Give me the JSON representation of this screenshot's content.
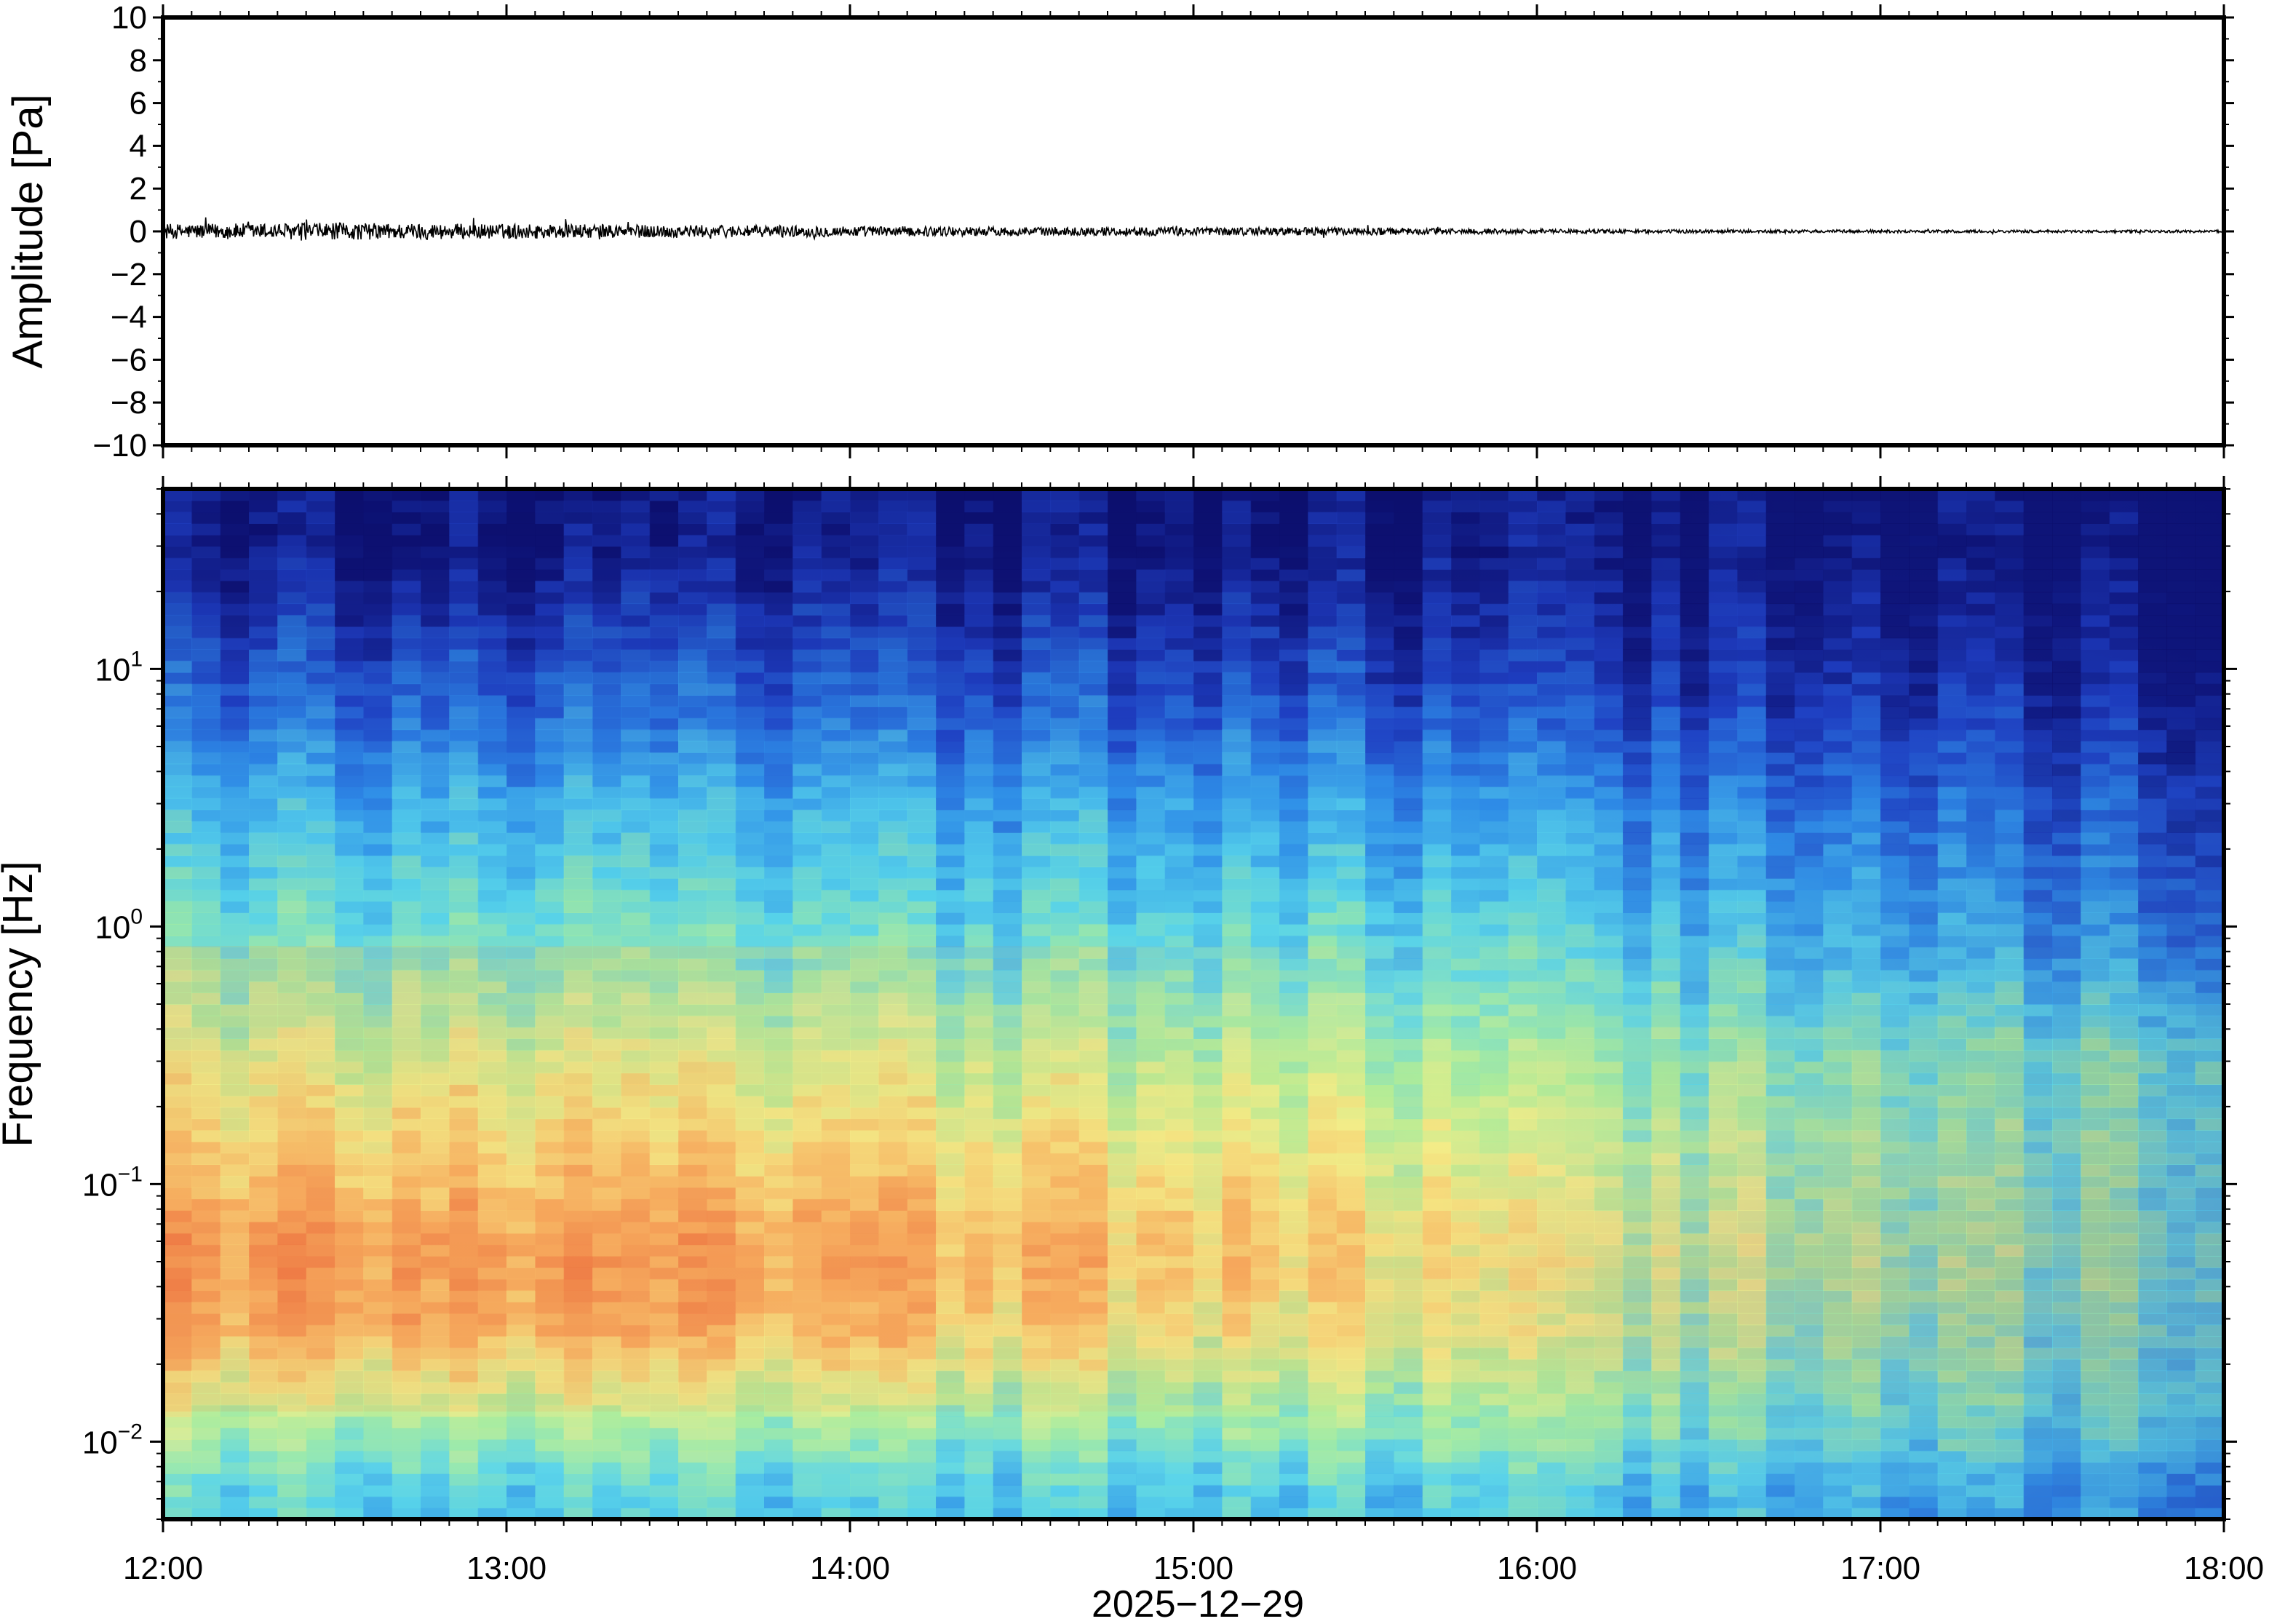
{
  "chart_data": [
    {
      "type": "line",
      "panel": "waveform",
      "ylabel": "Amplitude [Pa]",
      "ylim": [
        -10,
        10
      ],
      "yticks": [
        10,
        8,
        6,
        4,
        2,
        0,
        -2,
        -4,
        -6,
        -8,
        -10
      ],
      "ytick_labels": [
        "10",
        "8",
        "6",
        "4",
        "2",
        "0",
        "−2",
        "−4",
        "−6",
        "−8",
        "−10"
      ],
      "x_range": [
        "12:00",
        "18:00"
      ],
      "trace_color": "#000000",
      "series": [
        {
          "x": [
            "12:00",
            "12:30",
            "13:00",
            "13:30",
            "14:00",
            "14:30",
            "15:00",
            "15:30",
            "16:00",
            "16:30",
            "17:00",
            "17:30",
            "18:00"
          ],
          "values": [
            0.35,
            0.4,
            0.35,
            0.3,
            0.25,
            0.2,
            0.2,
            0.18,
            0.1,
            0.08,
            0.07,
            0.06,
            0.06
          ]
        }
      ]
    },
    {
      "type": "heatmap",
      "panel": "spectrogram",
      "ylabel": "Frequency [Hz]",
      "yscale": "log",
      "ylim": [
        0.005,
        50
      ],
      "yticks": [
        0.01,
        0.1,
        1,
        10
      ],
      "ytick_labels": [
        {
          "base": "10",
          "exp": "−2"
        },
        {
          "base": "10",
          "exp": "−1"
        },
        {
          "base": "10",
          "exp": "0"
        },
        {
          "base": "10",
          "exp": "1"
        }
      ],
      "xlabel": "2025−12−29",
      "xticks": [
        "12:00",
        "13:00",
        "14:00",
        "15:00",
        "16:00",
        "17:00",
        "18:00"
      ],
      "colormap": [
        "#0c0f6e",
        "#1f3fc2",
        "#2f8ee8",
        "#59d6ea",
        "#a8ee9c",
        "#f4f08a",
        "#f7b060",
        "#ee7642"
      ],
      "time_hours": [
        12,
        13,
        14,
        15,
        16,
        17,
        18
      ],
      "freq_hz": [
        0.006,
        0.01,
        0.03,
        0.06,
        0.1,
        0.3,
        1,
        3,
        10,
        30
      ],
      "intensity": [
        [
          0.45,
          0.42,
          0.4,
          0.4,
          0.38,
          0.35,
          0.3
        ],
        [
          0.55,
          0.55,
          0.52,
          0.5,
          0.5,
          0.45,
          0.42
        ],
        [
          0.85,
          0.88,
          0.82,
          0.72,
          0.62,
          0.55,
          0.5
        ],
        [
          0.9,
          0.92,
          0.86,
          0.8,
          0.65,
          0.58,
          0.52
        ],
        [
          0.8,
          0.82,
          0.78,
          0.74,
          0.62,
          0.55,
          0.48
        ],
        [
          0.65,
          0.68,
          0.64,
          0.62,
          0.55,
          0.52,
          0.52
        ],
        [
          0.48,
          0.5,
          0.45,
          0.45,
          0.4,
          0.35,
          0.25
        ],
        [
          0.36,
          0.38,
          0.34,
          0.34,
          0.28,
          0.24,
          0.16
        ],
        [
          0.2,
          0.2,
          0.18,
          0.18,
          0.1,
          0.08,
          0.04
        ],
        [
          0.03,
          0.03,
          0.03,
          0.02,
          0.02,
          0.0,
          0.0
        ]
      ]
    }
  ]
}
